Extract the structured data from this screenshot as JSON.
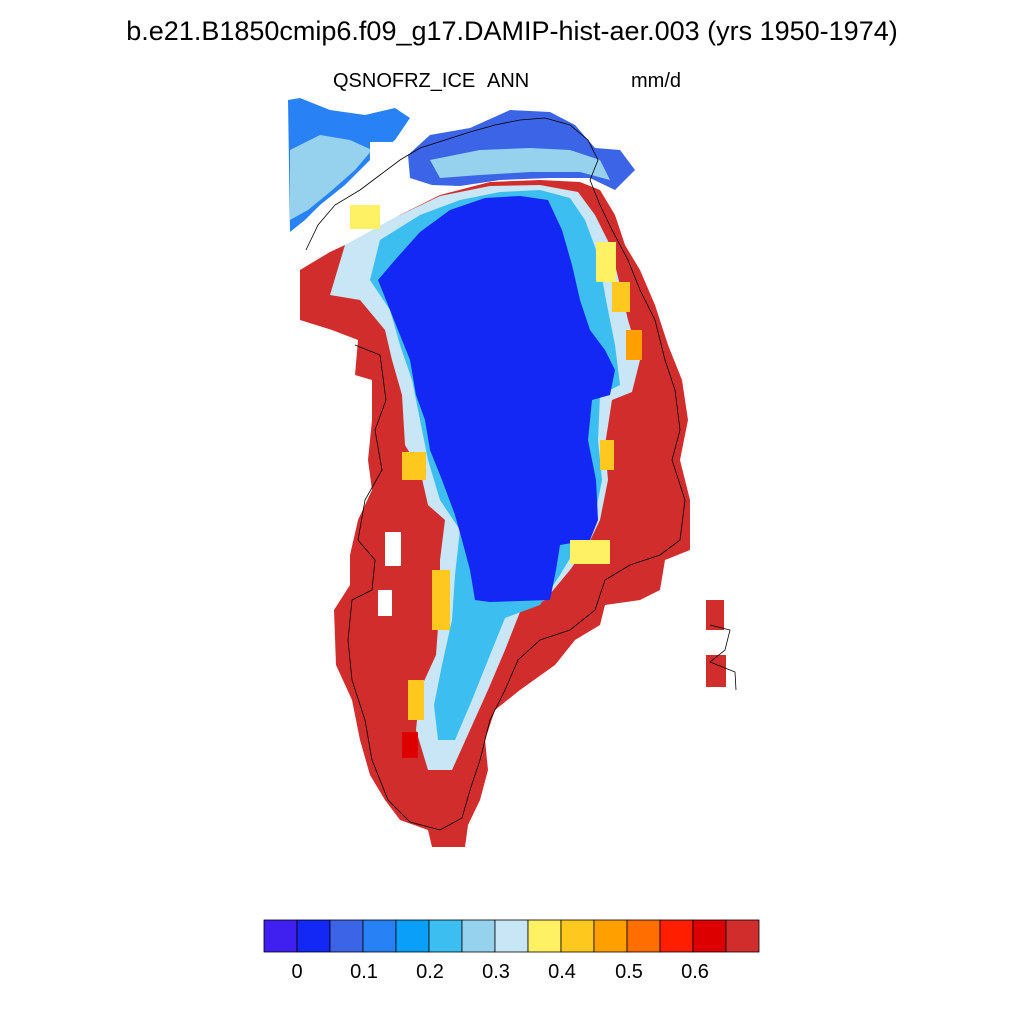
{
  "title": "b.e21.B1850cmip6.f09_g17.DAMIP-hist-aer.003 (yrs 1950-1974)",
  "subtitle_left": "QSNOFRZ_ICE",
  "subtitle_center": "ANN",
  "subtitle_right": "mm/d",
  "map": {
    "region": "Greenland",
    "ocean_color": "#ffffff",
    "coastline_color": "#000000",
    "interior_value": 0.05,
    "margin_value": "> 0.65"
  },
  "colorbar": {
    "colors": [
      "#4020f0",
      "#1428f5",
      "#3c64e6",
      "#2882f5",
      "#0aa0fa",
      "#3cbef0",
      "#96d2ee",
      "#c8e6f5",
      "#fff064",
      "#ffc81e",
      "#ffa000",
      "#ff6e00",
      "#ff1e00",
      "#dc0000",
      "#d22d2d"
    ],
    "tick_labels": [
      "0",
      "0.1",
      "0.2",
      "0.3",
      "0.4",
      "0.5",
      "0.6"
    ]
  }
}
